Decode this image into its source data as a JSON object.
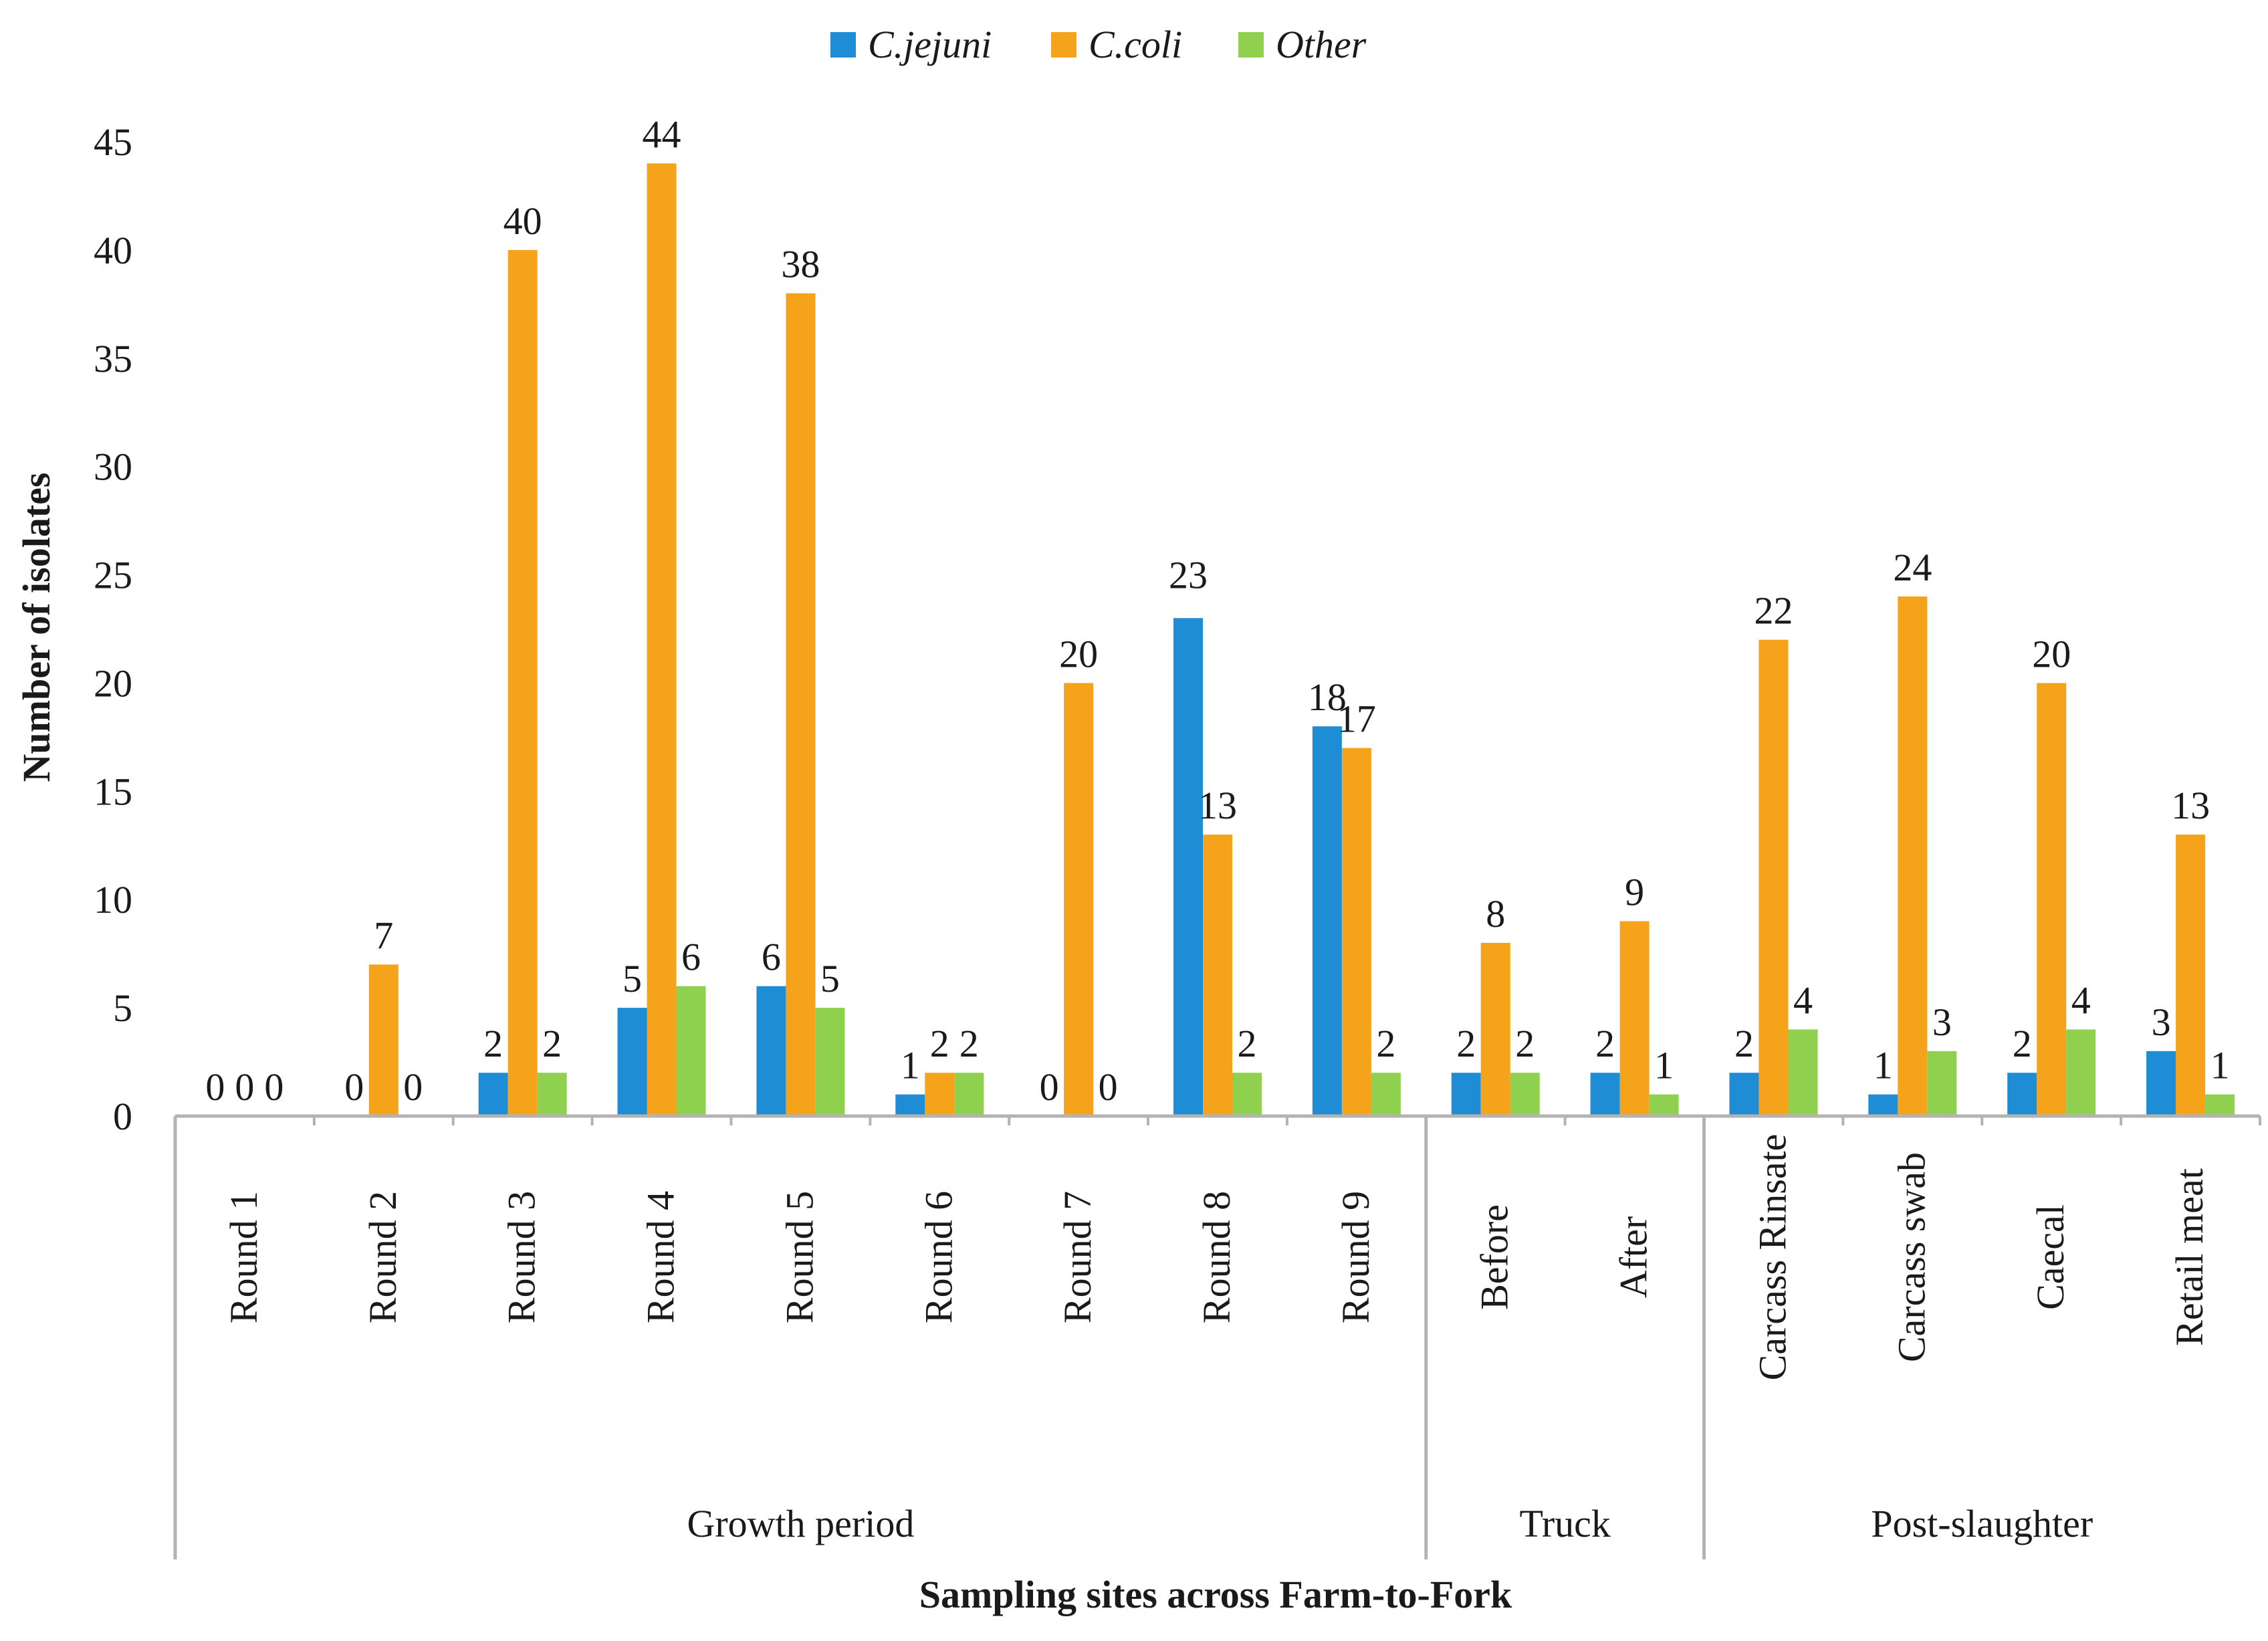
{
  "chart_data": {
    "type": "bar",
    "title": "",
    "xlabel": "Sampling sites across Farm-to-Fork",
    "ylabel": "Number of isolates",
    "ylim": [
      0,
      45
    ],
    "yticks": [
      "0",
      "5",
      "10",
      "15",
      "20",
      "25",
      "30",
      "35",
      "40",
      "45"
    ],
    "grid": false,
    "legend_position": "top-center",
    "categories": [
      "Round 1",
      "Round 2",
      "Round 3",
      "Round 4",
      "Round 5",
      "Round 6",
      "Round 7",
      "Round 8",
      "Round 9",
      "Before",
      "After",
      "Carcass Rinsate",
      "Carcass swab",
      "Caecal",
      "Retail meat"
    ],
    "groups": [
      {
        "label": "Growth period",
        "categories": 9
      },
      {
        "label": "Truck",
        "categories": 2
      },
      {
        "label": "Post-slaughter",
        "categories": 4
      }
    ],
    "series": [
      {
        "name": "C.jejuni",
        "color": "#1f8dd6",
        "values": [
          0,
          0,
          2,
          5,
          6,
          1,
          0,
          23,
          18,
          2,
          2,
          2,
          1,
          2,
          3
        ],
        "labels": [
          "0",
          "0",
          "2",
          "5",
          "6",
          "1",
          "0",
          "",
          "18",
          "2",
          "2",
          "2",
          "1",
          "2",
          "3"
        ]
      },
      {
        "name": "C.coli",
        "color": "#f5a31b",
        "values": [
          0,
          7,
          40,
          44,
          38,
          2,
          20,
          13,
          17,
          8,
          9,
          22,
          24,
          20,
          13
        ],
        "labels": [
          "0",
          "7",
          "40",
          "44",
          "38",
          "2",
          "20",
          "13",
          "17",
          "8",
          "9",
          "22",
          "24",
          "20",
          "13"
        ]
      },
      {
        "name": "Other",
        "color": "#8fd14f",
        "values": [
          0,
          0,
          2,
          6,
          5,
          2,
          0,
          2,
          2,
          2,
          1,
          4,
          3,
          4,
          1
        ],
        "labels": [
          "0",
          "0",
          "2",
          "6",
          "5",
          "2",
          "0",
          "2",
          "2",
          "2",
          "1",
          "4",
          "3",
          "4",
          "1"
        ]
      }
    ],
    "annotations": [
      {
        "text": "23",
        "category": "Round 8",
        "y": 25
      }
    ]
  }
}
